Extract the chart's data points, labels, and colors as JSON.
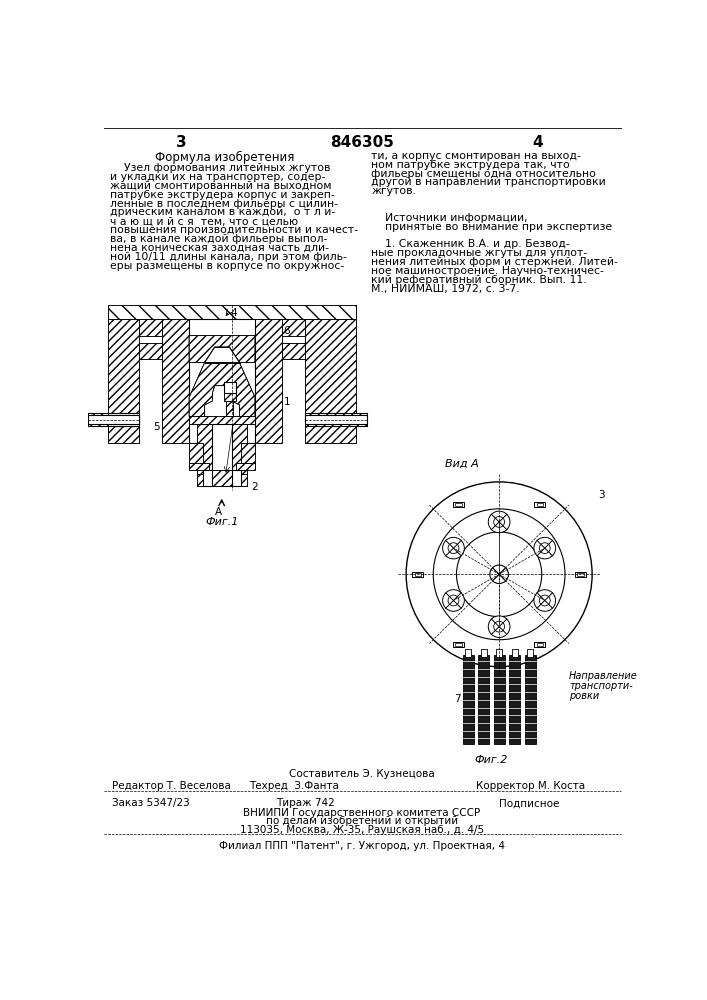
{
  "bg_color": "#ffffff",
  "page_width": 7.07,
  "page_height": 10.0,
  "header": {
    "left_page_num": "3",
    "center_patent": "846305",
    "right_page_num": "4"
  },
  "left_col": {
    "title": "Формула изобретения",
    "body_lines": [
      "    Узел формования литейных жгутов",
      "и укладки их на транспортер, содер-",
      "жащий смонтированный на выходном",
      "патрубке экструдера корпус и закреп-",
      "ленные в последнем фильеры с цилин-",
      "дрическим каналом в каждой,  о т л и-",
      "ч а ю щ и й с я  тем, что с целью",
      "повышения производительности и качест-",
      "ва, в канале каждой фильеры выпол-",
      "нена коническая заходная часть дли-",
      "ной 10/11 длины канала, при этом филь-",
      "еры размещены в корпусе по окружнос-"
    ]
  },
  "right_col": {
    "body_lines": [
      "ти, а корпус смонтирован на выход-",
      "ном патрубке экструдера так, что",
      "фильеры смещены одна относительно",
      "другой в направлении транспортировки",
      "жгутов.",
      "",
      "",
      "    Источники информации,",
      "    принятые во внимание при экспертизе",
      "",
      "    1. Скаженник В.А. и др. Безвод-",
      "ные прокладочные жгуты для уплот-",
      "нения литейных форм и стержней. Литей-",
      "ное машиностроение. Научно-техничес-",
      "кий реферативный сборник. Вып. 11.",
      "М., НИИМАШ, 1972, с. 3-7."
    ]
  },
  "footer": {
    "sestavitel": "Составитель Э. Кузнецова",
    "editor": "Редактор Т. Веселова",
    "tehred": "Техред  З.Фанта",
    "korrektor": "Корректор М. Коста",
    "order": "Заказ 5347/23",
    "tirazh": "Тираж 742",
    "podpisnoe": "Подписное",
    "org1": "ВНИИПИ Государственного комитета СССР",
    "org2": "по делам изобретений и открытий",
    "org3": "113035, Москва, Ж-35, Раушская наб., д. 4/5",
    "filial": "Филиал ППП \"Патент\", г. Ужгород, ул. Проектная, 4"
  }
}
